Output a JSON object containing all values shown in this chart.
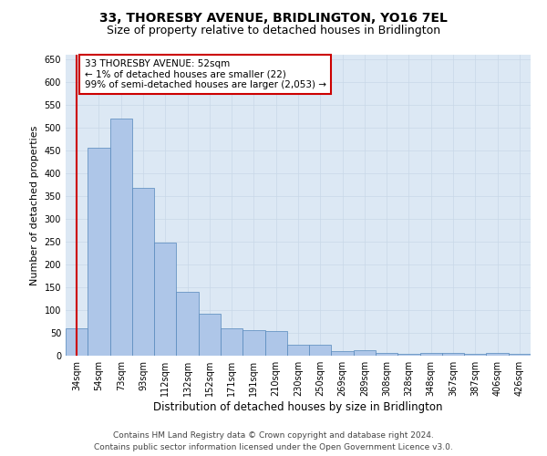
{
  "title": "33, THORESBY AVENUE, BRIDLINGTON, YO16 7EL",
  "subtitle": "Size of property relative to detached houses in Bridlington",
  "xlabel": "Distribution of detached houses by size in Bridlington",
  "ylabel": "Number of detached properties",
  "categories": [
    "34sqm",
    "54sqm",
    "73sqm",
    "93sqm",
    "112sqm",
    "132sqm",
    "152sqm",
    "171sqm",
    "191sqm",
    "210sqm",
    "230sqm",
    "250sqm",
    "269sqm",
    "289sqm",
    "308sqm",
    "328sqm",
    "348sqm",
    "367sqm",
    "387sqm",
    "406sqm",
    "426sqm"
  ],
  "values": [
    60,
    457,
    521,
    368,
    248,
    140,
    93,
    60,
    57,
    55,
    25,
    25,
    10,
    12,
    7,
    5,
    6,
    6,
    5,
    6,
    5
  ],
  "bar_color": "#aec6e8",
  "bar_edge_color": "#5588bb",
  "vline_x_idx": 0,
  "vline_color": "#cc0000",
  "annotation_line1": "33 THORESBY AVENUE: 52sqm",
  "annotation_line2": "← 1% of detached houses are smaller (22)",
  "annotation_line3": "99% of semi-detached houses are larger (2,053) →",
  "annotation_box_color": "#cc0000",
  "annotation_box_bg": "#ffffff",
  "ylim": [
    0,
    660
  ],
  "yticks": [
    0,
    50,
    100,
    150,
    200,
    250,
    300,
    350,
    400,
    450,
    500,
    550,
    600,
    650
  ],
  "grid_color": "#c8d8e8",
  "bg_color": "#dce8f4",
  "footer_line1": "Contains HM Land Registry data © Crown copyright and database right 2024.",
  "footer_line2": "Contains public sector information licensed under the Open Government Licence v3.0.",
  "title_fontsize": 10,
  "subtitle_fontsize": 9,
  "xlabel_fontsize": 8.5,
  "ylabel_fontsize": 8,
  "tick_fontsize": 7,
  "annotation_fontsize": 7.5,
  "footer_fontsize": 6.5
}
